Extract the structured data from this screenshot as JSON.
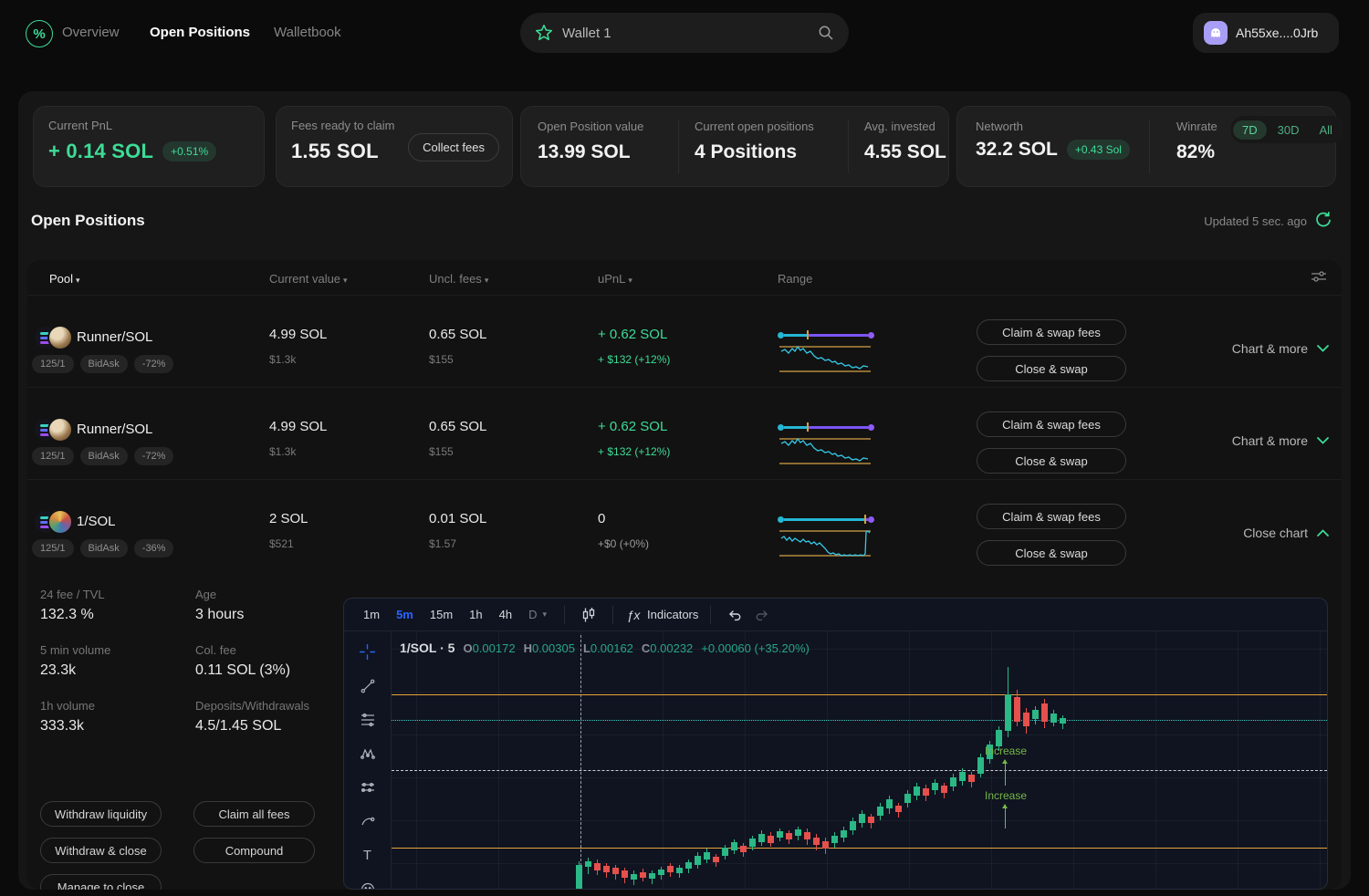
{
  "colors": {
    "accent_green": "#3ddc97",
    "candle_up": "#2bb886",
    "candle_down": "#e5504d",
    "range_cyan": "#25b7d3",
    "range_purple": "#7b55f6",
    "bound_amber": "#e8a33d",
    "tf_active_blue": "#2962ff"
  },
  "nav": {
    "brand": "%",
    "items": [
      {
        "label": "Overview"
      },
      {
        "label": "Open Positions"
      },
      {
        "label": "Walletbook"
      }
    ],
    "active": "Open Positions",
    "search": {
      "value": "Wallet 1",
      "star_icon": "star",
      "magnifier_icon": "magnifier"
    },
    "account": {
      "label": "Ah55xe....0Jrb",
      "avatar_icon": "phantom-ghost"
    }
  },
  "stats": {
    "current_pnl": {
      "label": "Current PnL",
      "value": "+ 0.14 SOL",
      "badge": "+0.51%"
    },
    "fees": {
      "label": "Fees ready to claim",
      "value": "1.55 SOL",
      "button": "Collect fees"
    },
    "open_value": {
      "label": "Open Position value",
      "value": "13.99 SOL"
    },
    "open_positions": {
      "label": "Current open positions",
      "value": "4 Positions"
    },
    "avg_invested": {
      "label": "Avg. invested",
      "value": "4.55 SOL"
    },
    "networth": {
      "label": "Networth",
      "value": "32.2 SOL",
      "badge": "+0.43 Sol"
    },
    "winrate": {
      "label": "Winrate",
      "value": "82%",
      "toggles": [
        "7D",
        "30D",
        "All"
      ],
      "active_toggle": "7D"
    }
  },
  "positions": {
    "title": "Open Positions",
    "updated": "Updated 5 sec. ago",
    "columns": {
      "pool": "Pool",
      "current_value": "Current value",
      "uncl_fees": "Uncl. fees",
      "upnl": "uPnL",
      "range": "Range"
    },
    "sort_caret": "▾"
  },
  "rows": [
    {
      "pool": "Runner/SOL",
      "badges": [
        "125/1",
        "BidAsk",
        "-72%"
      ],
      "current_value": "4.99 SOL",
      "current_value_usd": "$1.3k",
      "fees": "0.65 SOL",
      "fees_usd": "$155",
      "upnl": "+ 0.62 SOL",
      "upnl_sub": "+ $132 (+12%)",
      "range": {
        "cyan_pct": 24
      },
      "buttons": [
        "Claim & swap fees",
        "Close & swap"
      ],
      "expander": "Chart & more",
      "spark": "2,10 6,8 10,12 14,7 17,10 20,5 23,9 26,7 30,12 34,10 38,15 42,18 46,17 50,20 54,19 58,22 61,21 64,24 68,23 72,26 76,25 80,28 84,27 88,29 92,26 97,27"
    },
    {
      "pool": "Runner/SOL",
      "badges": [
        "125/1",
        "BidAsk",
        "-72%"
      ],
      "current_value": "4.99 SOL",
      "current_value_usd": "$1.3k",
      "fees": "0.65 SOL",
      "fees_usd": "$155",
      "upnl": "+ 0.62 SOL",
      "upnl_sub": "+ $132 (+12%)",
      "range": {
        "cyan_pct": 24
      },
      "buttons": [
        "Claim & swap fees",
        "Close & swap"
      ],
      "expander": "Chart & more",
      "spark": "2,10 6,8 10,12 14,7 17,10 20,5 23,9 26,7 30,12 34,10 38,15 42,18 46,17 50,20 54,19 58,22 61,21 64,24 68,23 72,26 76,25 80,28 84,27 88,29 92,26 97,27"
    },
    {
      "pool": "1/SOL",
      "badges": [
        "125/1",
        "BidAsk",
        "-36%"
      ],
      "current_value": "2 SOL",
      "current_value_usd": "$521",
      "fees": "0.01 SOL",
      "fees_usd": "$1.57",
      "upnl": "0",
      "upnl_sub": "+$0 (+0%)",
      "range": {
        "cyan_pct": 91
      },
      "buttons": [
        "Claim & swap fees",
        "Close & swap"
      ],
      "expander": "Close chart",
      "spark": "2,13 5,11 8,15 11,12 14,16 17,13 20,15 23,17 26,14 29,17 32,16 35,19 38,17 41,20 44,18 47,21 50,24 53,28 56,30 59,29 62,31 65,30 68,32 71,31 74,32 77,31 80,32 83,31 86,32 89,31 92,32 94,30 95,6 97,5 99,7"
    }
  ],
  "details": {
    "stats": [
      {
        "label": "24 fee / TVL",
        "value": "132.3 %"
      },
      {
        "label": "Age",
        "value": "3 hours"
      },
      {
        "label": "5 min volume",
        "value": "23.3k"
      },
      {
        "label": "Col. fee",
        "value": "0.11 SOL (3%)"
      },
      {
        "label": "1h volume",
        "value": "333.3k"
      },
      {
        "label": "Deposits/Withdrawals",
        "value": "4.5/1.45 SOL"
      }
    ],
    "buttons": [
      "Withdraw liquidity",
      "Claim all fees",
      "Withdraw & close",
      "Compound",
      "Manage to close"
    ]
  },
  "chart": {
    "timeframes": [
      "1m",
      "5m",
      "15m",
      "1h",
      "4h",
      "D"
    ],
    "active_timeframe": "5m",
    "caret": "▾",
    "fx_label": "ƒx",
    "indicators_label": "Indicators",
    "legend": {
      "title": "1/SOL · 5",
      "labels": [
        "O",
        "H",
        "L",
        "C"
      ],
      "o": "0.00172",
      "h": "0.00305",
      "l": "0.00162",
      "c": "0.00232",
      "change": "+0.00060 (+35.20%)"
    },
    "annotations": [
      "Increase",
      "Increase"
    ],
    "candles": [
      [
        202,
        248,
        252,
        281,
        284,
        "g"
      ],
      [
        212,
        244,
        248,
        254,
        262,
        "g"
      ],
      [
        222,
        246,
        250,
        258,
        263,
        "r"
      ],
      [
        232,
        250,
        253,
        260,
        266,
        "r"
      ],
      [
        242,
        252,
        255,
        262,
        268,
        "r"
      ],
      [
        252,
        255,
        258,
        266,
        272,
        "r"
      ],
      [
        262,
        258,
        262,
        268,
        274,
        "g"
      ],
      [
        272,
        256,
        260,
        266,
        270,
        "r"
      ],
      [
        282,
        258,
        261,
        267,
        273,
        "g"
      ],
      [
        292,
        254,
        257,
        263,
        268,
        "g"
      ],
      [
        302,
        250,
        253,
        260,
        265,
        "r"
      ],
      [
        312,
        252,
        255,
        261,
        266,
        "g"
      ],
      [
        322,
        246,
        249,
        256,
        261,
        "g"
      ],
      [
        332,
        238,
        242,
        252,
        256,
        "g"
      ],
      [
        342,
        234,
        238,
        246,
        250,
        "g"
      ],
      [
        352,
        240,
        243,
        249,
        254,
        "r"
      ],
      [
        362,
        230,
        233,
        242,
        246,
        "g"
      ],
      [
        372,
        224,
        227,
        236,
        240,
        "g"
      ],
      [
        382,
        228,
        231,
        238,
        243,
        "r"
      ],
      [
        392,
        220,
        223,
        232,
        236,
        "g"
      ],
      [
        402,
        214,
        218,
        227,
        231,
        "g"
      ],
      [
        412,
        216,
        220,
        228,
        232,
        "r"
      ],
      [
        422,
        212,
        215,
        222,
        226,
        "g"
      ],
      [
        432,
        214,
        217,
        224,
        229,
        "r"
      ],
      [
        442,
        210,
        213,
        220,
        225,
        "g"
      ],
      [
        452,
        212,
        216,
        224,
        230,
        "r"
      ],
      [
        462,
        218,
        222,
        230,
        236,
        "r"
      ],
      [
        472,
        222,
        226,
        234,
        240,
        "r"
      ],
      [
        482,
        216,
        220,
        228,
        233,
        "g"
      ],
      [
        492,
        210,
        214,
        222,
        227,
        "g"
      ],
      [
        502,
        200,
        204,
        214,
        219,
        "g"
      ],
      [
        512,
        192,
        196,
        206,
        211,
        "g"
      ],
      [
        522,
        196,
        199,
        206,
        212,
        "r"
      ],
      [
        532,
        184,
        188,
        198,
        203,
        "g"
      ],
      [
        542,
        176,
        180,
        190,
        196,
        "g"
      ],
      [
        552,
        184,
        187,
        194,
        200,
        "r"
      ],
      [
        562,
        170,
        174,
        184,
        189,
        "g"
      ],
      [
        572,
        162,
        166,
        176,
        181,
        "g"
      ],
      [
        582,
        164,
        168,
        176,
        182,
        "r"
      ],
      [
        592,
        158,
        162,
        170,
        175,
        "g"
      ],
      [
        602,
        162,
        165,
        173,
        179,
        "r"
      ],
      [
        612,
        152,
        156,
        166,
        171,
        "g"
      ],
      [
        622,
        146,
        150,
        160,
        165,
        "g"
      ],
      [
        632,
        150,
        153,
        161,
        167,
        "r"
      ],
      [
        642,
        130,
        134,
        152,
        156,
        "g"
      ],
      [
        652,
        116,
        120,
        136,
        141,
        "g"
      ],
      [
        662,
        100,
        104,
        122,
        127,
        "g"
      ],
      [
        672,
        35,
        65,
        105,
        112,
        "g"
      ],
      [
        682,
        60,
        68,
        95,
        100,
        "r"
      ],
      [
        692,
        80,
        85,
        100,
        108,
        "r"
      ],
      [
        702,
        78,
        82,
        92,
        98,
        "g"
      ],
      [
        712,
        70,
        75,
        95,
        102,
        "r"
      ],
      [
        722,
        82,
        86,
        96,
        100,
        "g"
      ],
      [
        732,
        88,
        91,
        97,
        103,
        "g"
      ]
    ]
  }
}
